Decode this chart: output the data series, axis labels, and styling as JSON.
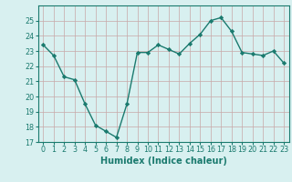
{
  "x": [
    0,
    1,
    2,
    3,
    4,
    5,
    6,
    7,
    8,
    9,
    10,
    11,
    12,
    13,
    14,
    15,
    16,
    17,
    18,
    19,
    20,
    21,
    22,
    23
  ],
  "y": [
    23.4,
    22.7,
    21.3,
    21.1,
    19.5,
    18.1,
    17.7,
    17.3,
    19.5,
    22.9,
    22.9,
    23.4,
    23.1,
    22.8,
    23.5,
    24.1,
    25.0,
    25.2,
    24.3,
    22.9,
    22.8,
    22.7,
    23.0,
    22.2
  ],
  "line_color": "#1a7a6e",
  "marker": "D",
  "marker_size": 2.2,
  "bg_color": "#d8f0f0",
  "grid_color": "#b8d8d8",
  "xlabel": "Humidex (Indice chaleur)",
  "ylim": [
    17,
    26
  ],
  "xlim": [
    -0.5,
    23.5
  ],
  "yticks": [
    17,
    18,
    19,
    20,
    21,
    22,
    23,
    24,
    25
  ],
  "xticks": [
    0,
    1,
    2,
    3,
    4,
    5,
    6,
    7,
    8,
    9,
    10,
    11,
    12,
    13,
    14,
    15,
    16,
    17,
    18,
    19,
    20,
    21,
    22,
    23
  ],
  "tick_label_fontsize": 5.8,
  "xlabel_fontsize": 7.0,
  "line_width": 1.0
}
